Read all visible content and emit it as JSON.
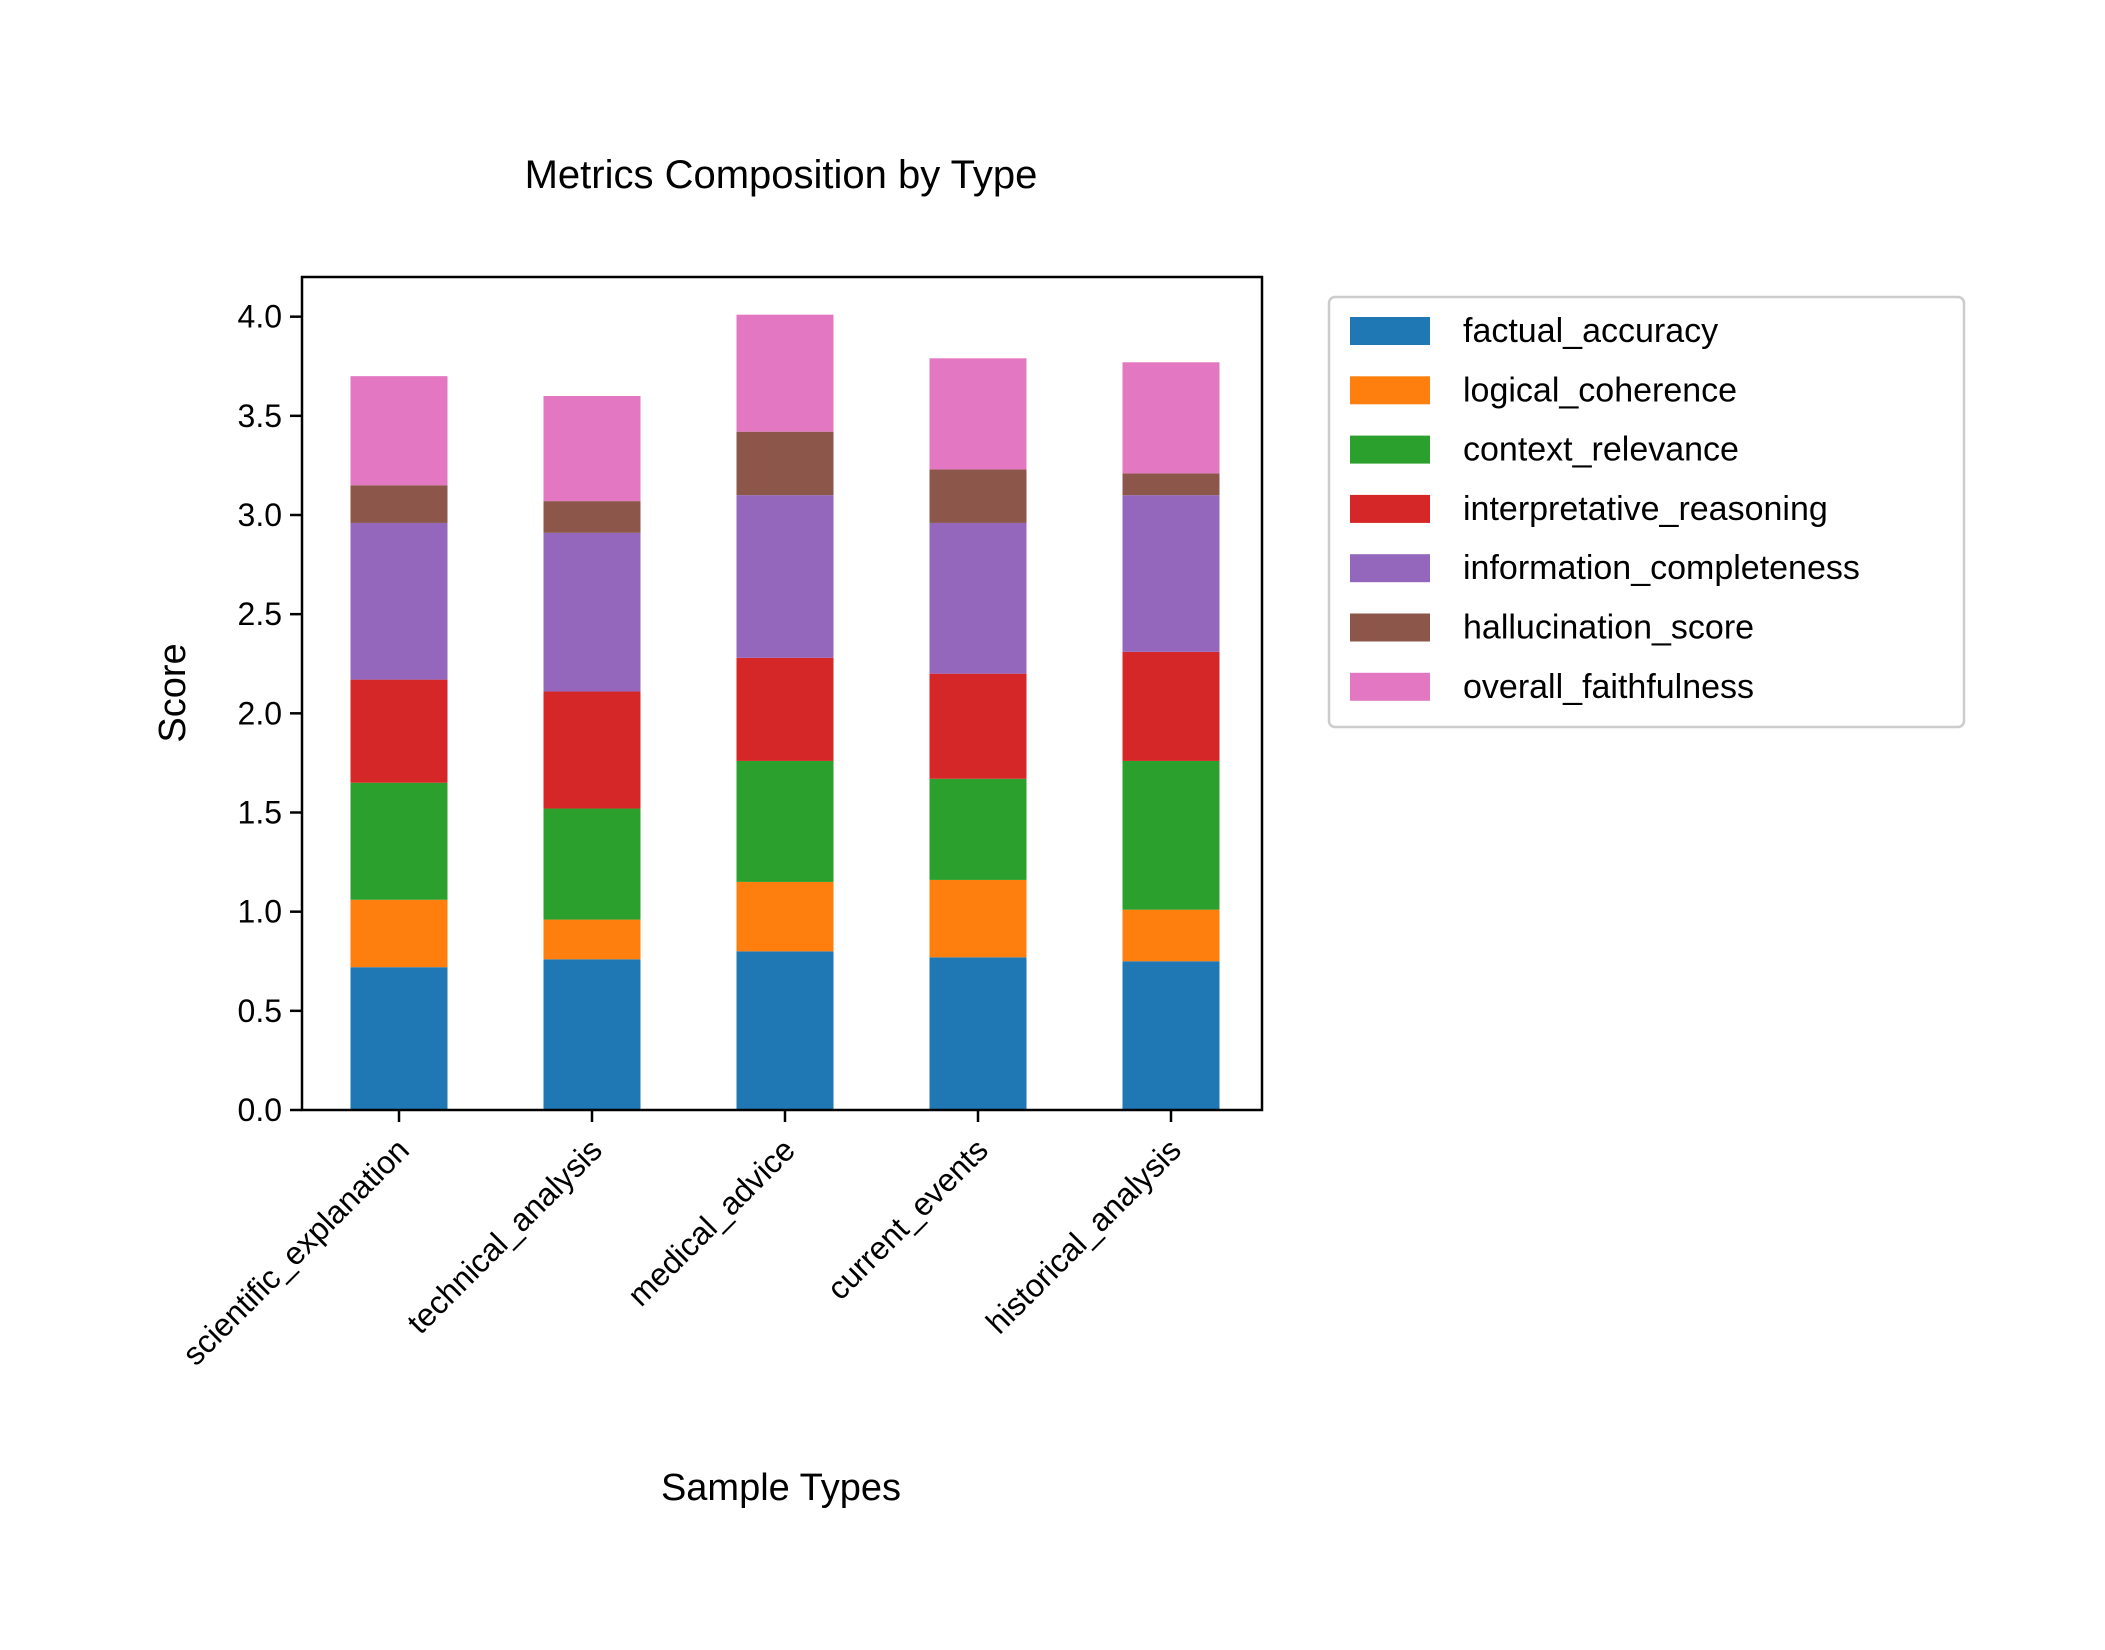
{
  "chart_data": {
    "type": "bar",
    "stacked": true,
    "title": "Metrics Composition by Type",
    "xlabel": "Sample Types",
    "ylabel": "Score",
    "ylim": [
      0,
      4.2
    ],
    "yticks": [
      "0.0",
      "0.5",
      "1.0",
      "1.5",
      "2.0",
      "2.5",
      "3.0",
      "3.5",
      "4.0"
    ],
    "grid": false,
    "legend_position": "outside-right-top",
    "categories": [
      "scientific_explanation",
      "technical_analysis",
      "medical_advice",
      "current_events",
      "historical_analysis"
    ],
    "series": [
      {
        "name": "factual_accuracy",
        "color": "#1f77b4",
        "values": [
          0.72,
          0.76,
          0.8,
          0.77,
          0.75
        ]
      },
      {
        "name": "logical_coherence",
        "color": "#ff7f0e",
        "values": [
          0.34,
          0.2,
          0.35,
          0.39,
          0.26
        ]
      },
      {
        "name": "context_relevance",
        "color": "#2ca02c",
        "values": [
          0.59,
          0.56,
          0.61,
          0.51,
          0.75
        ]
      },
      {
        "name": "interpretative_reasoning",
        "color": "#d62728",
        "values": [
          0.52,
          0.59,
          0.52,
          0.53,
          0.55
        ]
      },
      {
        "name": "information_completeness",
        "color": "#9467bd",
        "values": [
          0.79,
          0.8,
          0.82,
          0.76,
          0.79
        ]
      },
      {
        "name": "hallucination_score",
        "color": "#8c564b",
        "values": [
          0.19,
          0.16,
          0.32,
          0.27,
          0.11
        ]
      },
      {
        "name": "overall_faithfulness",
        "color": "#e377c2",
        "values": [
          0.55,
          0.53,
          0.59,
          0.56,
          0.56
        ]
      }
    ]
  }
}
